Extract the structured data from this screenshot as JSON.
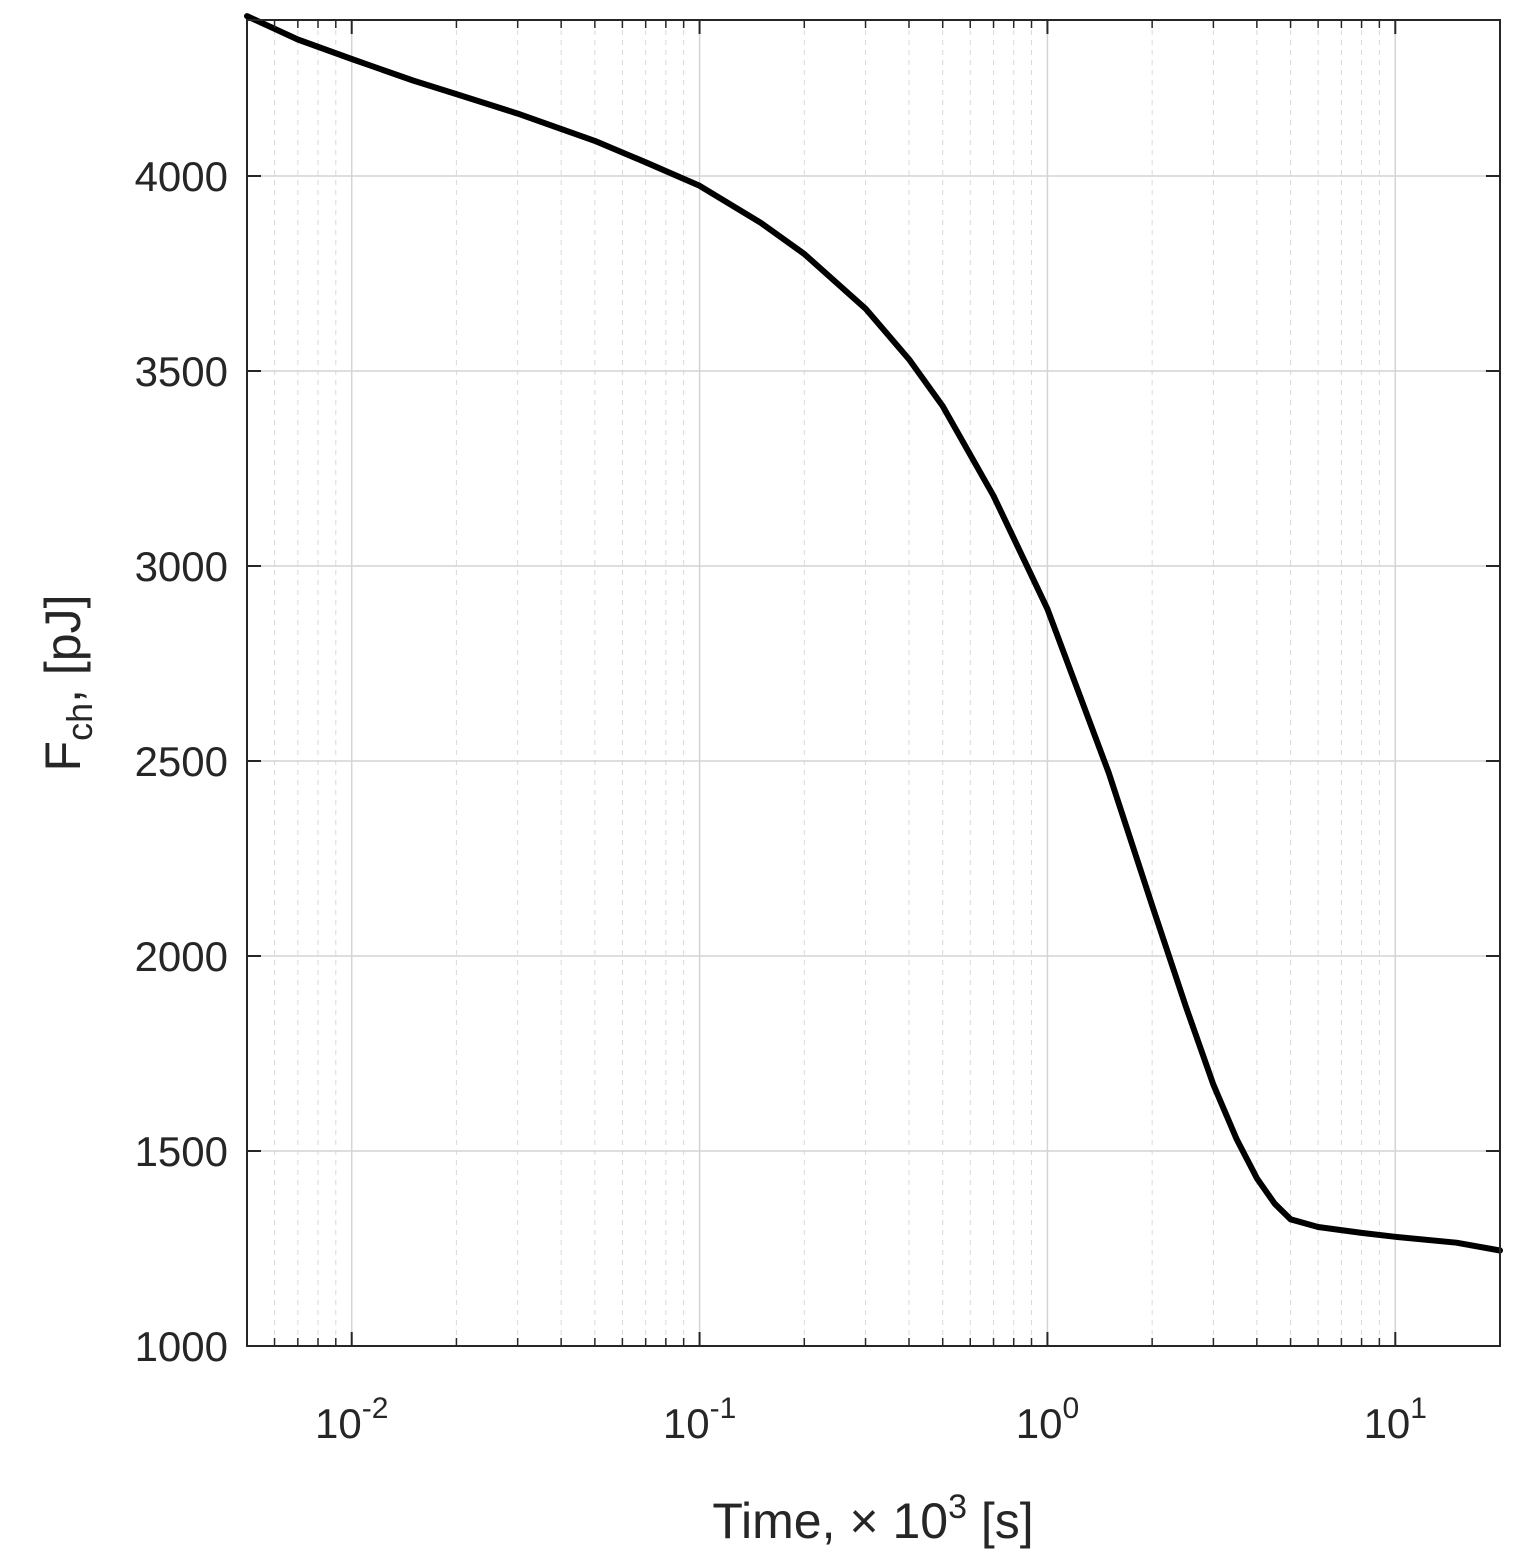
{
  "chart_data": {
    "type": "line",
    "title": "",
    "xlabel": {
      "prefix": "Time, ",
      "times": "×",
      "base": " 10",
      "exp": "3",
      "suffix": " [s]"
    },
    "ylabel": {
      "main": "F",
      "sub": "ch",
      "suffix": ", [pJ]"
    },
    "xscale": "log",
    "xlim": [
      0.005,
      20
    ],
    "ylim": [
      1000,
      4400
    ],
    "xticks": [
      {
        "value": 0.01,
        "base": "10",
        "exp": "-2"
      },
      {
        "value": 0.1,
        "base": "10",
        "exp": "-1"
      },
      {
        "value": 1,
        "base": "10",
        "exp": "0"
      },
      {
        "value": 10,
        "base": "10",
        "exp": "1"
      }
    ],
    "yticks": [
      "1000",
      "1500",
      "2000",
      "2500",
      "3000",
      "3500",
      "4000"
    ],
    "grid": true,
    "minor_grid": true,
    "line_color": "#000000",
    "series": [
      {
        "x": [
          0.005,
          0.007,
          0.01,
          0.015,
          0.02,
          0.03,
          0.05,
          0.07,
          0.1,
          0.15,
          0.2,
          0.3,
          0.4,
          0.5,
          0.7,
          1.0,
          1.5,
          2.0,
          2.5,
          3.0,
          3.5,
          4.0,
          4.5,
          5.0,
          6.0,
          8.0,
          10,
          15,
          20
        ],
        "y": [
          4410,
          4350,
          4300,
          4245,
          4210,
          4160,
          4090,
          4035,
          3975,
          3880,
          3800,
          3660,
          3530,
          3410,
          3180,
          2890,
          2470,
          2130,
          1870,
          1670,
          1530,
          1430,
          1365,
          1325,
          1305,
          1290,
          1280,
          1265,
          1245
        ]
      }
    ]
  }
}
